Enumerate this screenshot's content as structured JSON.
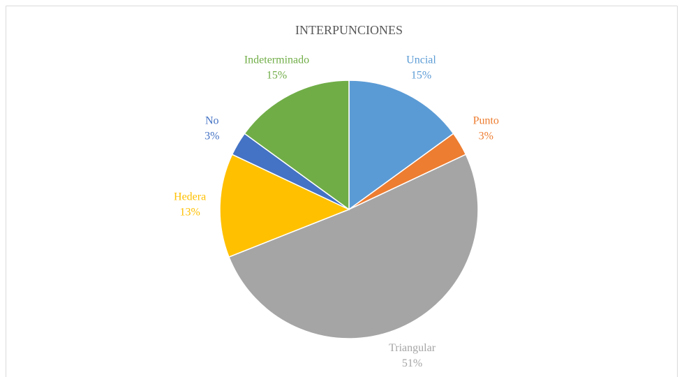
{
  "chart_data": {
    "type": "pie",
    "title": "INTERPUNCIONES",
    "categories": [
      "Uncial",
      "Punto",
      "Triangular",
      "Hedera",
      "No",
      "Indeterminado"
    ],
    "values": [
      15,
      3,
      51,
      13,
      3,
      15
    ],
    "value_labels": [
      "15%",
      "3%",
      "51%",
      "13%",
      "3%",
      "15%"
    ],
    "colors": [
      "#5b9bd5",
      "#ed7d31",
      "#a5a5a5",
      "#ffc000",
      "#4472c4",
      "#70ad47"
    ]
  }
}
